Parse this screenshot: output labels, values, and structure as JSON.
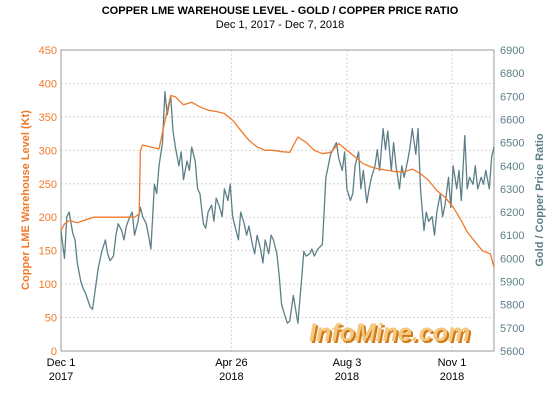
{
  "chart_data": {
    "type": "line",
    "title": "COPPER LME WAREHOUSE LEVEL - GOLD / COPPER PRICE RATIO",
    "subtitle": "Dec 1, 2017 - Dec 7, 2018",
    "ylabel_left": "Copper LME Warehouse Level (Kt)",
    "ylabel_right": "Gold / Copper Price Ratio",
    "ylim_left": [
      0,
      450
    ],
    "ylim_right": [
      5600,
      6900
    ],
    "yticks_left": [
      0,
      50,
      100,
      150,
      200,
      250,
      300,
      350,
      400,
      450
    ],
    "yticks_right": [
      5600,
      5700,
      5800,
      5900,
      6000,
      6100,
      6200,
      6300,
      6400,
      6500,
      6600,
      6700,
      6800,
      6900
    ],
    "x_range": [
      "2017-12-01",
      "2018-12-07"
    ],
    "xticks": [
      {
        "date": "2017-12-01",
        "label": "Dec 1",
        "year": "2017"
      },
      {
        "date": "2018-04-26",
        "label": "Apr 26",
        "year": "2018"
      },
      {
        "date": "2018-08-03",
        "label": "Aug 3",
        "year": "2018"
      },
      {
        "date": "2018-11-01",
        "label": "Nov 1",
        "year": "2018"
      }
    ],
    "grid": true,
    "legend": "none",
    "series": [
      {
        "name": "Copper LME Warehouse Level (Kt)",
        "axis": "left",
        "color": "#f07a2a",
        "points": [
          [
            "2017-12-01",
            180
          ],
          [
            "2017-12-04",
            190
          ],
          [
            "2017-12-08",
            195
          ],
          [
            "2017-12-15",
            192
          ],
          [
            "2017-12-22",
            196
          ],
          [
            "2017-12-29",
            200
          ],
          [
            "2018-01-12",
            200
          ],
          [
            "2018-01-26",
            200
          ],
          [
            "2018-02-02",
            200
          ],
          [
            "2018-02-06",
            205
          ],
          [
            "2018-02-07",
            300
          ],
          [
            "2018-02-09",
            308
          ],
          [
            "2018-02-16",
            305
          ],
          [
            "2018-02-23",
            302
          ],
          [
            "2018-03-02",
            360
          ],
          [
            "2018-03-05",
            382
          ],
          [
            "2018-03-09",
            380
          ],
          [
            "2018-03-16",
            368
          ],
          [
            "2018-03-23",
            372
          ],
          [
            "2018-03-30",
            365
          ],
          [
            "2018-04-06",
            360
          ],
          [
            "2018-04-13",
            358
          ],
          [
            "2018-04-20",
            355
          ],
          [
            "2018-04-27",
            345
          ],
          [
            "2018-05-04",
            330
          ],
          [
            "2018-05-11",
            315
          ],
          [
            "2018-05-18",
            305
          ],
          [
            "2018-05-25",
            300
          ],
          [
            "2018-06-01",
            300
          ],
          [
            "2018-06-08",
            298
          ],
          [
            "2018-06-15",
            297
          ],
          [
            "2018-06-22",
            320
          ],
          [
            "2018-06-29",
            312
          ],
          [
            "2018-07-06",
            300
          ],
          [
            "2018-07-13",
            295
          ],
          [
            "2018-07-20",
            297
          ],
          [
            "2018-07-27",
            310
          ],
          [
            "2018-08-03",
            300
          ],
          [
            "2018-08-10",
            290
          ],
          [
            "2018-08-17",
            280
          ],
          [
            "2018-08-24",
            275
          ],
          [
            "2018-08-31",
            272
          ],
          [
            "2018-09-07",
            270
          ],
          [
            "2018-09-14",
            268
          ],
          [
            "2018-09-21",
            268
          ],
          [
            "2018-09-28",
            272
          ],
          [
            "2018-10-05",
            265
          ],
          [
            "2018-10-12",
            255
          ],
          [
            "2018-10-19",
            240
          ],
          [
            "2018-10-26",
            230
          ],
          [
            "2018-11-02",
            215
          ],
          [
            "2018-11-09",
            195
          ],
          [
            "2018-11-14",
            178
          ],
          [
            "2018-11-20",
            165
          ],
          [
            "2018-11-27",
            150
          ],
          [
            "2018-12-04",
            145
          ],
          [
            "2018-12-07",
            125
          ]
        ]
      },
      {
        "name": "Gold / Copper Price Ratio",
        "axis": "right",
        "color": "#5c7f87",
        "points": [
          [
            "2017-12-01",
            6120
          ],
          [
            "2017-12-04",
            6000
          ],
          [
            "2017-12-06",
            6180
          ],
          [
            "2017-12-08",
            6200
          ],
          [
            "2017-12-11",
            6110
          ],
          [
            "2017-12-13",
            6080
          ],
          [
            "2017-12-15",
            5980
          ],
          [
            "2017-12-18",
            5900
          ],
          [
            "2017-12-20",
            5870
          ],
          [
            "2017-12-22",
            5850
          ],
          [
            "2017-12-26",
            5790
          ],
          [
            "2017-12-28",
            5780
          ],
          [
            "2018-01-02",
            5960
          ],
          [
            "2018-01-05",
            6030
          ],
          [
            "2018-01-08",
            6080
          ],
          [
            "2018-01-10",
            6020
          ],
          [
            "2018-01-12",
            5990
          ],
          [
            "2018-01-15",
            6010
          ],
          [
            "2018-01-17",
            6100
          ],
          [
            "2018-01-19",
            6150
          ],
          [
            "2018-01-22",
            6120
          ],
          [
            "2018-01-24",
            6080
          ],
          [
            "2018-01-26",
            6140
          ],
          [
            "2018-01-29",
            6180
          ],
          [
            "2018-01-31",
            6200
          ],
          [
            "2018-02-02",
            6100
          ],
          [
            "2018-02-05",
            6160
          ],
          [
            "2018-02-07",
            6220
          ],
          [
            "2018-02-09",
            6180
          ],
          [
            "2018-02-12",
            6150
          ],
          [
            "2018-02-14",
            6100
          ],
          [
            "2018-02-16",
            6040
          ],
          [
            "2018-02-19",
            6320
          ],
          [
            "2018-02-21",
            6280
          ],
          [
            "2018-02-23",
            6400
          ],
          [
            "2018-02-26",
            6500
          ],
          [
            "2018-02-28",
            6720
          ],
          [
            "2018-03-02",
            6620
          ],
          [
            "2018-03-05",
            6700
          ],
          [
            "2018-03-07",
            6550
          ],
          [
            "2018-03-09",
            6480
          ],
          [
            "2018-03-12",
            6400
          ],
          [
            "2018-03-14",
            6460
          ],
          [
            "2018-03-16",
            6340
          ],
          [
            "2018-03-19",
            6420
          ],
          [
            "2018-03-21",
            6380
          ],
          [
            "2018-03-23",
            6480
          ],
          [
            "2018-03-26",
            6420
          ],
          [
            "2018-03-28",
            6300
          ],
          [
            "2018-03-30",
            6280
          ],
          [
            "2018-04-02",
            6150
          ],
          [
            "2018-04-04",
            6130
          ],
          [
            "2018-04-06",
            6200
          ],
          [
            "2018-04-09",
            6230
          ],
          [
            "2018-04-11",
            6160
          ],
          [
            "2018-04-13",
            6260
          ],
          [
            "2018-04-16",
            6220
          ],
          [
            "2018-04-18",
            6180
          ],
          [
            "2018-04-20",
            6300
          ],
          [
            "2018-04-23",
            6250
          ],
          [
            "2018-04-25",
            6320
          ],
          [
            "2018-04-27",
            6180
          ],
          [
            "2018-04-30",
            6120
          ],
          [
            "2018-05-02",
            6080
          ],
          [
            "2018-05-04",
            6200
          ],
          [
            "2018-05-07",
            6150
          ],
          [
            "2018-05-09",
            6100
          ],
          [
            "2018-05-11",
            6140
          ],
          [
            "2018-05-14",
            6060
          ],
          [
            "2018-05-16",
            6020
          ],
          [
            "2018-05-18",
            6100
          ],
          [
            "2018-05-21",
            6040
          ],
          [
            "2018-05-23",
            5980
          ],
          [
            "2018-05-25",
            6080
          ],
          [
            "2018-05-28",
            6020
          ],
          [
            "2018-05-30",
            6100
          ],
          [
            "2018-06-01",
            6080
          ],
          [
            "2018-06-04",
            6020
          ],
          [
            "2018-06-06",
            5920
          ],
          [
            "2018-06-08",
            5800
          ],
          [
            "2018-06-11",
            5750
          ],
          [
            "2018-06-13",
            5720
          ],
          [
            "2018-06-15",
            5730
          ],
          [
            "2018-06-18",
            5840
          ],
          [
            "2018-06-20",
            5780
          ],
          [
            "2018-06-22",
            5720
          ],
          [
            "2018-06-25",
            5900
          ],
          [
            "2018-06-27",
            6030
          ],
          [
            "2018-06-29",
            6010
          ],
          [
            "2018-07-02",
            6020
          ],
          [
            "2018-07-04",
            6040
          ],
          [
            "2018-07-06",
            6010
          ],
          [
            "2018-07-09",
            6040
          ],
          [
            "2018-07-11",
            6050
          ],
          [
            "2018-07-13",
            6060
          ],
          [
            "2018-07-16",
            6350
          ],
          [
            "2018-07-18",
            6400
          ],
          [
            "2018-07-20",
            6450
          ],
          [
            "2018-07-23",
            6480
          ],
          [
            "2018-07-25",
            6500
          ],
          [
            "2018-07-27",
            6430
          ],
          [
            "2018-07-30",
            6380
          ],
          [
            "2018-08-01",
            6460
          ],
          [
            "2018-08-03",
            6300
          ],
          [
            "2018-08-06",
            6250
          ],
          [
            "2018-08-08",
            6280
          ],
          [
            "2018-08-10",
            6400
          ],
          [
            "2018-08-13",
            6460
          ],
          [
            "2018-08-15",
            6300
          ],
          [
            "2018-08-17",
            6380
          ],
          [
            "2018-08-20",
            6240
          ],
          [
            "2018-08-22",
            6300
          ],
          [
            "2018-08-24",
            6350
          ],
          [
            "2018-08-27",
            6400
          ],
          [
            "2018-08-29",
            6470
          ],
          [
            "2018-08-31",
            6380
          ],
          [
            "2018-09-03",
            6560
          ],
          [
            "2018-09-05",
            6470
          ],
          [
            "2018-09-07",
            6550
          ],
          [
            "2018-09-10",
            6380
          ],
          [
            "2018-09-12",
            6500
          ],
          [
            "2018-09-14",
            6400
          ],
          [
            "2018-09-17",
            6300
          ],
          [
            "2018-09-19",
            6400
          ],
          [
            "2018-09-21",
            6350
          ],
          [
            "2018-09-24",
            6420
          ],
          [
            "2018-09-26",
            6480
          ],
          [
            "2018-09-28",
            6560
          ],
          [
            "2018-10-01",
            6450
          ],
          [
            "2018-10-03",
            6560
          ],
          [
            "2018-10-05",
            6300
          ],
          [
            "2018-10-08",
            6120
          ],
          [
            "2018-10-10",
            6200
          ],
          [
            "2018-10-12",
            6160
          ],
          [
            "2018-10-15",
            6180
          ],
          [
            "2018-10-17",
            6100
          ],
          [
            "2018-10-19",
            6200
          ],
          [
            "2018-10-22",
            6280
          ],
          [
            "2018-10-24",
            6180
          ],
          [
            "2018-10-26",
            6230
          ],
          [
            "2018-10-29",
            6350
          ],
          [
            "2018-10-31",
            6220
          ],
          [
            "2018-11-02",
            6400
          ],
          [
            "2018-11-05",
            6300
          ],
          [
            "2018-11-07",
            6380
          ],
          [
            "2018-11-09",
            6250
          ],
          [
            "2018-11-12",
            6530
          ],
          [
            "2018-11-14",
            6300
          ],
          [
            "2018-11-16",
            6350
          ],
          [
            "2018-11-19",
            6320
          ],
          [
            "2018-11-21",
            6400
          ],
          [
            "2018-11-23",
            6300
          ],
          [
            "2018-11-26",
            6350
          ],
          [
            "2018-11-28",
            6320
          ],
          [
            "2018-11-30",
            6380
          ],
          [
            "2018-12-03",
            6300
          ],
          [
            "2018-12-05",
            6440
          ],
          [
            "2018-12-07",
            6480
          ]
        ]
      }
    ]
  },
  "watermark": {
    "text": "InfoMine.com",
    "fill_color": "#f5c87e",
    "shadow_color": "#d07a1a"
  }
}
